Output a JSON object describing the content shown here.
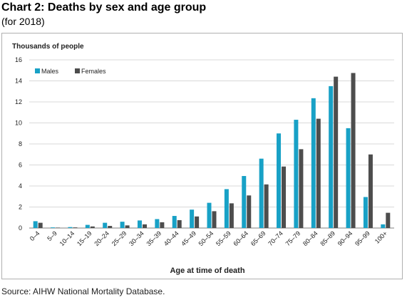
{
  "title": "Chart 2: Deaths by sex and age group",
  "subtitle": "(for 2018)",
  "source": "Source: AIHW National Mortality Database.",
  "colors": {
    "males": "#18a1c6",
    "females": "#4d4d4d",
    "grid": "#d9d9d9"
  },
  "chart_data": {
    "type": "bar",
    "ylabel": "Thousands of people",
    "xlabel": "Age at time of death",
    "ylim": [
      0,
      16
    ],
    "yticks": [
      0,
      2,
      4,
      6,
      8,
      10,
      12,
      14,
      16
    ],
    "grid": true,
    "legend_position": "top-left",
    "categories": [
      "0–4",
      "5–9",
      "10–14",
      "15–19",
      "20–24",
      "25–29",
      "30–34",
      "35–39",
      "40–44",
      "45–49",
      "50–54",
      "55–59",
      "60–64",
      "65–69",
      "70–74",
      "75–79",
      "80–84",
      "85–89",
      "90–94",
      "95–99",
      "100+"
    ],
    "series": [
      {
        "name": "Males",
        "values": [
          0.65,
          0.06,
          0.09,
          0.3,
          0.5,
          0.6,
          0.72,
          0.85,
          1.15,
          1.75,
          2.4,
          3.7,
          4.95,
          6.6,
          9.0,
          10.3,
          12.35,
          13.5,
          9.5,
          2.95,
          0.35
        ]
      },
      {
        "name": "Females",
        "values": [
          0.5,
          0.04,
          0.06,
          0.15,
          0.2,
          0.25,
          0.35,
          0.55,
          0.75,
          1.1,
          1.6,
          2.35,
          3.1,
          4.15,
          5.85,
          7.5,
          10.4,
          14.4,
          14.75,
          7.0,
          1.45
        ]
      }
    ]
  }
}
